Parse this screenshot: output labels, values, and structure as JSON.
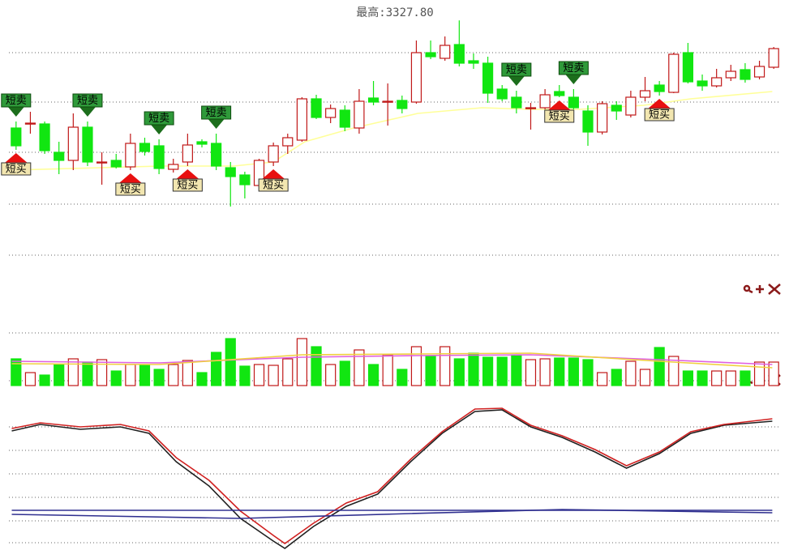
{
  "chart_data": [
    {
      "type": "candlestick",
      "title": "最高:3327.80",
      "xlim": [
        -0.5,
        53.5
      ],
      "ylim": [
        3013,
        3341
      ],
      "up_color": "#c01818",
      "down_color": "#11e611",
      "gridlines": [
        3288,
        3227,
        3165,
        3101,
        3038
      ],
      "open": [
        3195,
        3200,
        3200,
        3165,
        3155,
        3196,
        3153,
        3155,
        3147,
        3176,
        3173,
        3144,
        3153,
        3178,
        3176,
        3146,
        3137,
        3124,
        3153,
        3173,
        3180,
        3231,
        3208,
        3217,
        3195,
        3232,
        3228,
        3229,
        3227,
        3288,
        3281,
        3298,
        3278,
        3275,
        3243,
        3233,
        3220,
        3220,
        3240,
        3233,
        3216,
        3190,
        3223,
        3211,
        3233,
        3248,
        3239,
        3288,
        3253,
        3247,
        3257,
        3267,
        3258,
        3270
      ],
      "high": [
        3203,
        3215,
        3203,
        3178,
        3213,
        3203,
        3165,
        3163,
        3188,
        3183,
        3181,
        3157,
        3188,
        3181,
        3188,
        3153,
        3141,
        3157,
        3177,
        3188,
        3233,
        3236,
        3224,
        3223,
        3243,
        3253,
        3250,
        3235,
        3303,
        3303,
        3308,
        3327.8,
        3287,
        3283,
        3248,
        3241,
        3226,
        3243,
        3248,
        3243,
        3223,
        3228,
        3228,
        3241,
        3258,
        3253,
        3288,
        3300,
        3261,
        3268,
        3273,
        3275,
        3278,
        3295
      ],
      "low": [
        3168,
        3188,
        3163,
        3138,
        3143,
        3148,
        3125,
        3145,
        3143,
        3161,
        3138,
        3140,
        3148,
        3171,
        3143,
        3098,
        3108,
        3121,
        3148,
        3163,
        3178,
        3206,
        3201,
        3191,
        3188,
        3223,
        3198,
        3213,
        3225,
        3280,
        3278,
        3271,
        3268,
        3226,
        3228,
        3213,
        3193,
        3218,
        3233,
        3218,
        3173,
        3187,
        3205,
        3208,
        3228,
        3235,
        3238,
        3250,
        3241,
        3245,
        3253,
        3251,
        3255,
        3268
      ],
      "close": [
        3173,
        3201,
        3167,
        3155,
        3196,
        3153,
        3153,
        3147,
        3176,
        3166,
        3145,
        3150,
        3174,
        3175,
        3148,
        3135,
        3125,
        3155,
        3173,
        3183,
        3231,
        3208,
        3219,
        3196,
        3228,
        3227,
        3228,
        3219,
        3288,
        3283,
        3297,
        3275,
        3275,
        3238,
        3231,
        3220,
        3220,
        3236,
        3235,
        3220,
        3190,
        3225,
        3216,
        3233,
        3241,
        3240,
        3286,
        3252,
        3247,
        3257,
        3265,
        3255,
        3271,
        3293
      ],
      "overlays": [
        {
          "color": "#ffff99",
          "x": [
            -0.3,
            10.1,
            15.2,
            18,
            20.2,
            23.6,
            28.1,
            32.6,
            36,
            39.4,
            43.9,
            47.2,
            52.9
          ],
          "values": [
            3143,
            3148,
            3148,
            3153,
            3178,
            3195,
            3213,
            3220,
            3218,
            3218,
            3223,
            3231,
            3240
          ]
        }
      ],
      "signals": [
        {
          "text": "短卖",
          "index": 0
        },
        {
          "text": "短卖",
          "index": 5
        },
        {
          "text": "短卖",
          "index": 10
        },
        {
          "text": "短卖",
          "index": 14
        },
        {
          "text": "短卖",
          "index": 35
        },
        {
          "text": "短卖",
          "index": 39
        },
        {
          "text": "短买",
          "index": 0
        },
        {
          "text": "短买",
          "index": 8
        },
        {
          "text": "短买",
          "index": 12
        },
        {
          "text": "短买",
          "index": 18
        },
        {
          "text": "短买",
          "index": 38
        },
        {
          "text": "短买",
          "index": 45
        }
      ]
    },
    {
      "type": "bar",
      "xlim": [
        -0.5,
        53.5
      ],
      "ylim": [
        0,
        80
      ],
      "gridlines": [
        65,
        6
      ],
      "values": [
        33,
        16,
        13,
        26,
        33,
        29,
        32,
        18,
        26,
        25,
        20,
        26,
        31,
        16,
        41,
        58,
        24,
        26,
        25,
        33,
        58,
        48,
        26,
        30,
        44,
        26,
        38,
        20,
        48,
        36,
        48,
        33,
        40,
        35,
        35,
        38,
        32,
        33,
        34,
        34,
        32,
        16,
        20,
        30,
        20,
        47,
        36,
        18,
        18,
        18,
        18,
        18,
        29,
        29
      ],
      "overlays": [
        {
          "color": "#e060e0",
          "x": [
            -0.3,
            10,
            20,
            28,
            36,
            45,
            52.9
          ],
          "values": [
            30,
            28,
            35,
            37,
            38,
            32,
            26
          ]
        },
        {
          "color": "#f0d040",
          "x": [
            -0.3,
            10,
            20,
            28,
            36,
            45,
            52.9
          ],
          "values": [
            27,
            26,
            38,
            39,
            40,
            30,
            22
          ]
        }
      ]
    },
    {
      "type": "line",
      "xlim": [
        -0.5,
        53.5
      ],
      "ylim": [
        0,
        200
      ],
      "gridlines": [
        152,
        123,
        94,
        65,
        36,
        9
      ],
      "series": [
        {
          "color": "#202020",
          "x": [
            -0.3,
            1.7,
            4.5,
            7.3,
            9.3,
            11.2,
            13.5,
            15.7,
            18,
            18.8,
            20.8,
            23.1,
            25.3,
            27.6,
            29.8,
            32.1,
            34,
            36,
            38.2,
            40.5,
            42.7,
            45,
            47.2,
            49.5,
            52.9
          ],
          "values": [
            147,
            155,
            149,
            152,
            144,
            109,
            79,
            39,
            11,
            2,
            29,
            54,
            69,
            109,
            144,
            171,
            173,
            152,
            139,
            121,
            101,
            119,
            144,
            154,
            159
          ]
        },
        {
          "color": "#d02020",
          "x": [
            -0.3,
            1.7,
            4.5,
            7.3,
            9.3,
            11.2,
            13.5,
            15.7,
            18,
            18.8,
            20.8,
            23.1,
            25.3,
            27.6,
            29.8,
            32.1,
            34,
            36,
            38.2,
            40.5,
            42.7,
            45,
            47.2,
            49.5,
            52.9
          ],
          "values": [
            150,
            157,
            152,
            155,
            147,
            114,
            86,
            48,
            18,
            8,
            33,
            58,
            72,
            112,
            146,
            174,
            175,
            154,
            141,
            124,
            104,
            121,
            146,
            155,
            162
          ]
        },
        {
          "color": "#303090",
          "x": [
            -0.3,
            52.9
          ],
          "values": [
            49,
            49
          ]
        },
        {
          "color": "#303090",
          "x": [
            -0.3,
            15.7,
            27.6,
            38.2,
            52.9
          ],
          "values": [
            44,
            39,
            45,
            50,
            46
          ]
        }
      ]
    }
  ]
}
